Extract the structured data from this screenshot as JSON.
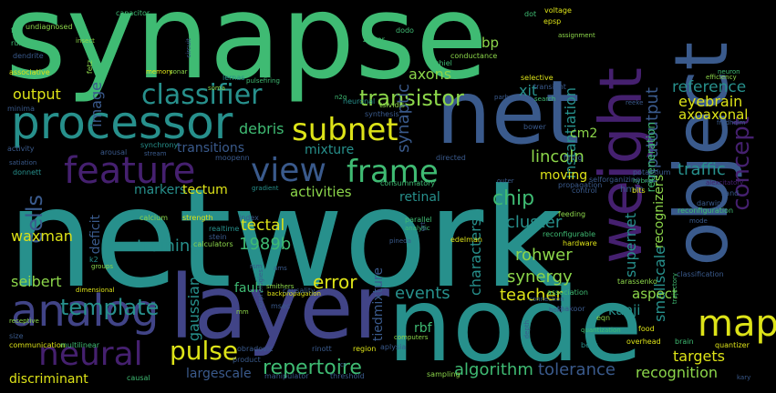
{
  "background": "#000000",
  "palette": {
    "green": "#3fbb73",
    "teal": "#27908c",
    "blue": "#3a5a8c",
    "indigo": "#414487",
    "purple": "#45206f",
    "yellow": "#dde318",
    "lime": "#8cd64a"
  },
  "words": [
    "synapse",
    "network",
    "node",
    "layer",
    "object",
    "net",
    "processor",
    "weight",
    "analog",
    "classifier",
    "feature",
    "view",
    "frame",
    "subnet",
    "neural",
    "map",
    "transistor",
    "concept",
    "pulse",
    "template",
    "repertoire",
    "cells",
    "image",
    "instantiation",
    "inputoutput",
    "chip",
    "lincoln",
    "cluster",
    "rohwer",
    "supernet",
    "characters",
    "error",
    "events",
    "teacher",
    "algorithm",
    "tolerance",
    "recognition",
    "targets",
    "traffic",
    "reference",
    "eyebrain",
    "axoaxonal",
    "xit",
    "cm2",
    "axons",
    "bp",
    "debris",
    "output",
    "synaptic",
    "training",
    "1989b",
    "tectal",
    "gaussian",
    "deficit",
    "waxman",
    "markers",
    "tectum",
    "activities",
    "retinal",
    "mixture",
    "transitions",
    "moving",
    "smallscale",
    "regeneration",
    "recognizers",
    "kanji",
    "aspect",
    "synergy",
    "seibert",
    "discriminant",
    "largescale",
    "fault",
    "rbf",
    "tiedmixture",
    "hmm",
    "capacitor",
    "undiagnosed",
    "insect",
    "rule",
    "dendrite",
    "associative",
    "memory",
    "sonar",
    "soma",
    "lernas",
    "neuronal",
    "synthesis",
    "tsividis",
    "chiel",
    "zipser",
    "dodo",
    "conductance",
    "selective",
    "transient",
    "voltage",
    "epsp",
    "dot",
    "assignment",
    "neuron",
    "efficiency",
    "fredholm",
    "reeke",
    "firing",
    "bower",
    "parberry",
    "search",
    "potassium",
    "hybrid",
    "propagation",
    "control",
    "bits",
    "sand",
    "darwin",
    "reconfiguration",
    "mode",
    "classification",
    "alexcitatory",
    "calcium",
    "strength",
    "index",
    "realtime",
    "stein",
    "calculators",
    "feeding",
    "parallel",
    "analytic",
    "reconfigurable",
    "hardware",
    "grt",
    "edelman",
    "groups",
    "k2",
    "ams",
    "smithers",
    "backpropagation",
    "msec",
    "causality",
    "association",
    "tarassenko",
    "connection",
    "receptive",
    "communication",
    "multilinear",
    "causal",
    "manipulator",
    "threshold",
    "sampling",
    "beer",
    "brain",
    "quantizer",
    "kary",
    "quantization",
    "overhead",
    "computers",
    "aplysia",
    "rinott",
    "region",
    "obradovic",
    "product",
    "morphologies",
    "food",
    "eqn",
    "thakoor",
    "fetz",
    "minima",
    "arousal",
    "synchrony",
    "stream",
    "moopenn",
    "activity",
    "satiation",
    "donnett",
    "gradient",
    "consummatory",
    "directed",
    "size",
    "selforganizing",
    "fa",
    "outer",
    "pulsefiring",
    "circuit",
    "mm",
    "dimensional",
    "trajectory",
    "depth",
    "pineda",
    "rsm",
    "n2q",
    "cr",
    "bold"
  ]
}
